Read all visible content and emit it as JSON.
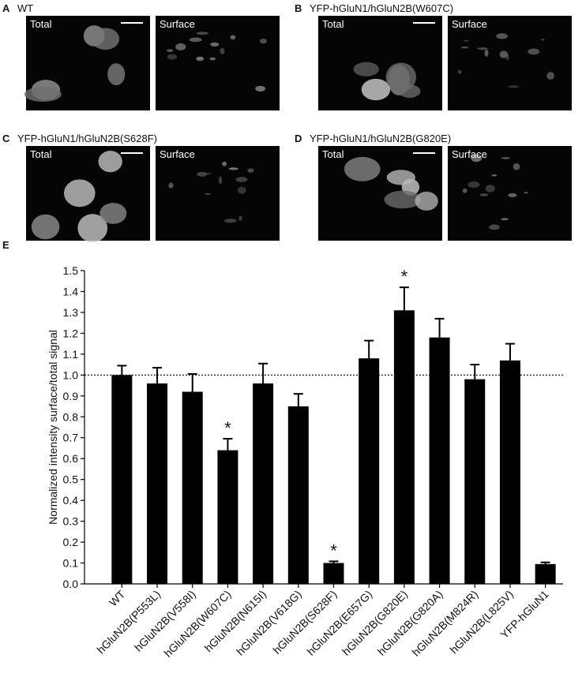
{
  "panels": [
    {
      "label": "A",
      "title": "WT",
      "images": [
        "Total",
        "Surface"
      ]
    },
    {
      "label": "B",
      "title": "YFP-hGluN1/hGluN2B(W607C)",
      "images": [
        "Total",
        "Surface"
      ]
    },
    {
      "label": "C",
      "title": "YFP-hGluN1/hGluN2B(S628F)",
      "images": [
        "Total",
        "Surface"
      ]
    },
    {
      "label": "D",
      "title": "YFP-hGluN1/hGluN2B(G820E)",
      "images": [
        "Total",
        "Surface"
      ]
    }
  ],
  "chart_data": {
    "type": "bar",
    "panel_label": "E",
    "y_label": "Normalized intensity surface/total signal",
    "categories": [
      "WT",
      "hGluN2B(P553L)",
      "hGluN2B(V558I)",
      "hGluN2B(W607C)",
      "hGluN2B(N615I)",
      "hGluN2B(V618G)",
      "hGluN2B(S628F)",
      "hGluN2B(E657G)",
      "hGluN2B(G820E)",
      "hGluN2B(G820A)",
      "hGluN2B(M824R)",
      "hGluN2B(L825V)",
      "YFP-hGluN1"
    ],
    "values": [
      1.0,
      0.96,
      0.92,
      0.64,
      0.96,
      0.85,
      0.1,
      1.08,
      1.31,
      1.18,
      0.98,
      1.07,
      0.095
    ],
    "errors": [
      0.045,
      0.075,
      0.085,
      0.055,
      0.095,
      0.06,
      0.008,
      0.085,
      0.11,
      0.09,
      0.07,
      0.08,
      0.008
    ],
    "color": "#000000",
    "ylim": [
      0,
      1.5
    ],
    "yticks": [
      {
        "value": 0,
        "label": "0.0"
      },
      0.1,
      0.2,
      0.3,
      0.4,
      0.5,
      0.6,
      0.7,
      0.8,
      0.9,
      {
        "value": 1,
        "label": "1.0"
      },
      1.1,
      1.2,
      1.3,
      1.4,
      1.5
    ],
    "reference_line": 1.0,
    "annotations": [
      {
        "text": "*",
        "category": "hGluN2B(W607C)"
      },
      {
        "text": "*",
        "category": "hGluN2B(S628F)"
      },
      {
        "text": "*",
        "category": "hGluN2B(G820E)"
      }
    ]
  }
}
